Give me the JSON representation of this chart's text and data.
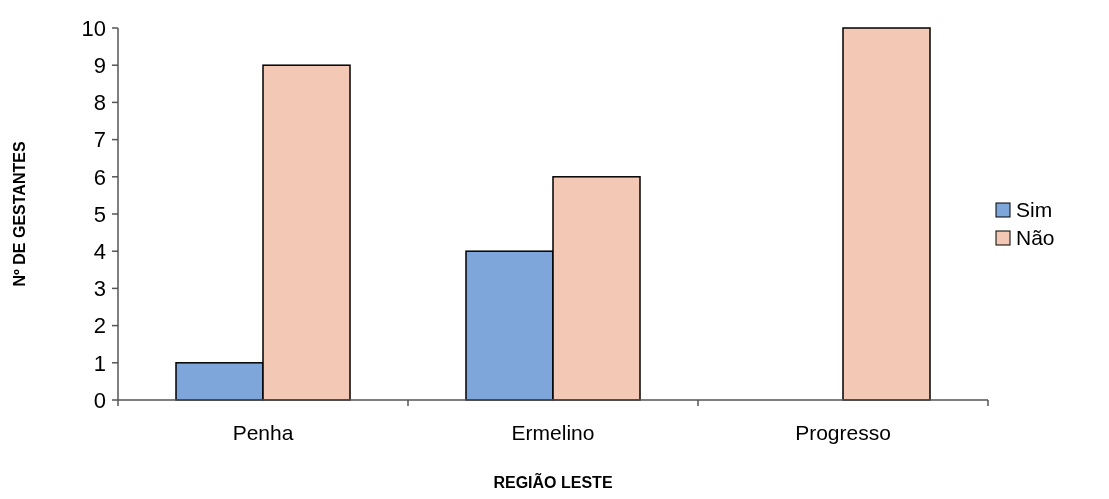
{
  "chart_data": {
    "type": "bar",
    "xlabel": "REGIÃO LESTE",
    "ylabel": "Nº DE GESTANTES",
    "categories": [
      "Penha",
      "Ermelino",
      "Progresso"
    ],
    "series": [
      {
        "name": "Sim",
        "color": "#7ea6db",
        "values": [
          1,
          4,
          0
        ]
      },
      {
        "name": "Não",
        "color": "#f3c9b5",
        "values": [
          9,
          6,
          10
        ]
      }
    ],
    "ylim": [
      0,
      10
    ],
    "yticks": [
      0,
      1,
      2,
      3,
      4,
      5,
      6,
      7,
      8,
      9,
      10
    ],
    "legend": "right",
    "grid": false
  }
}
